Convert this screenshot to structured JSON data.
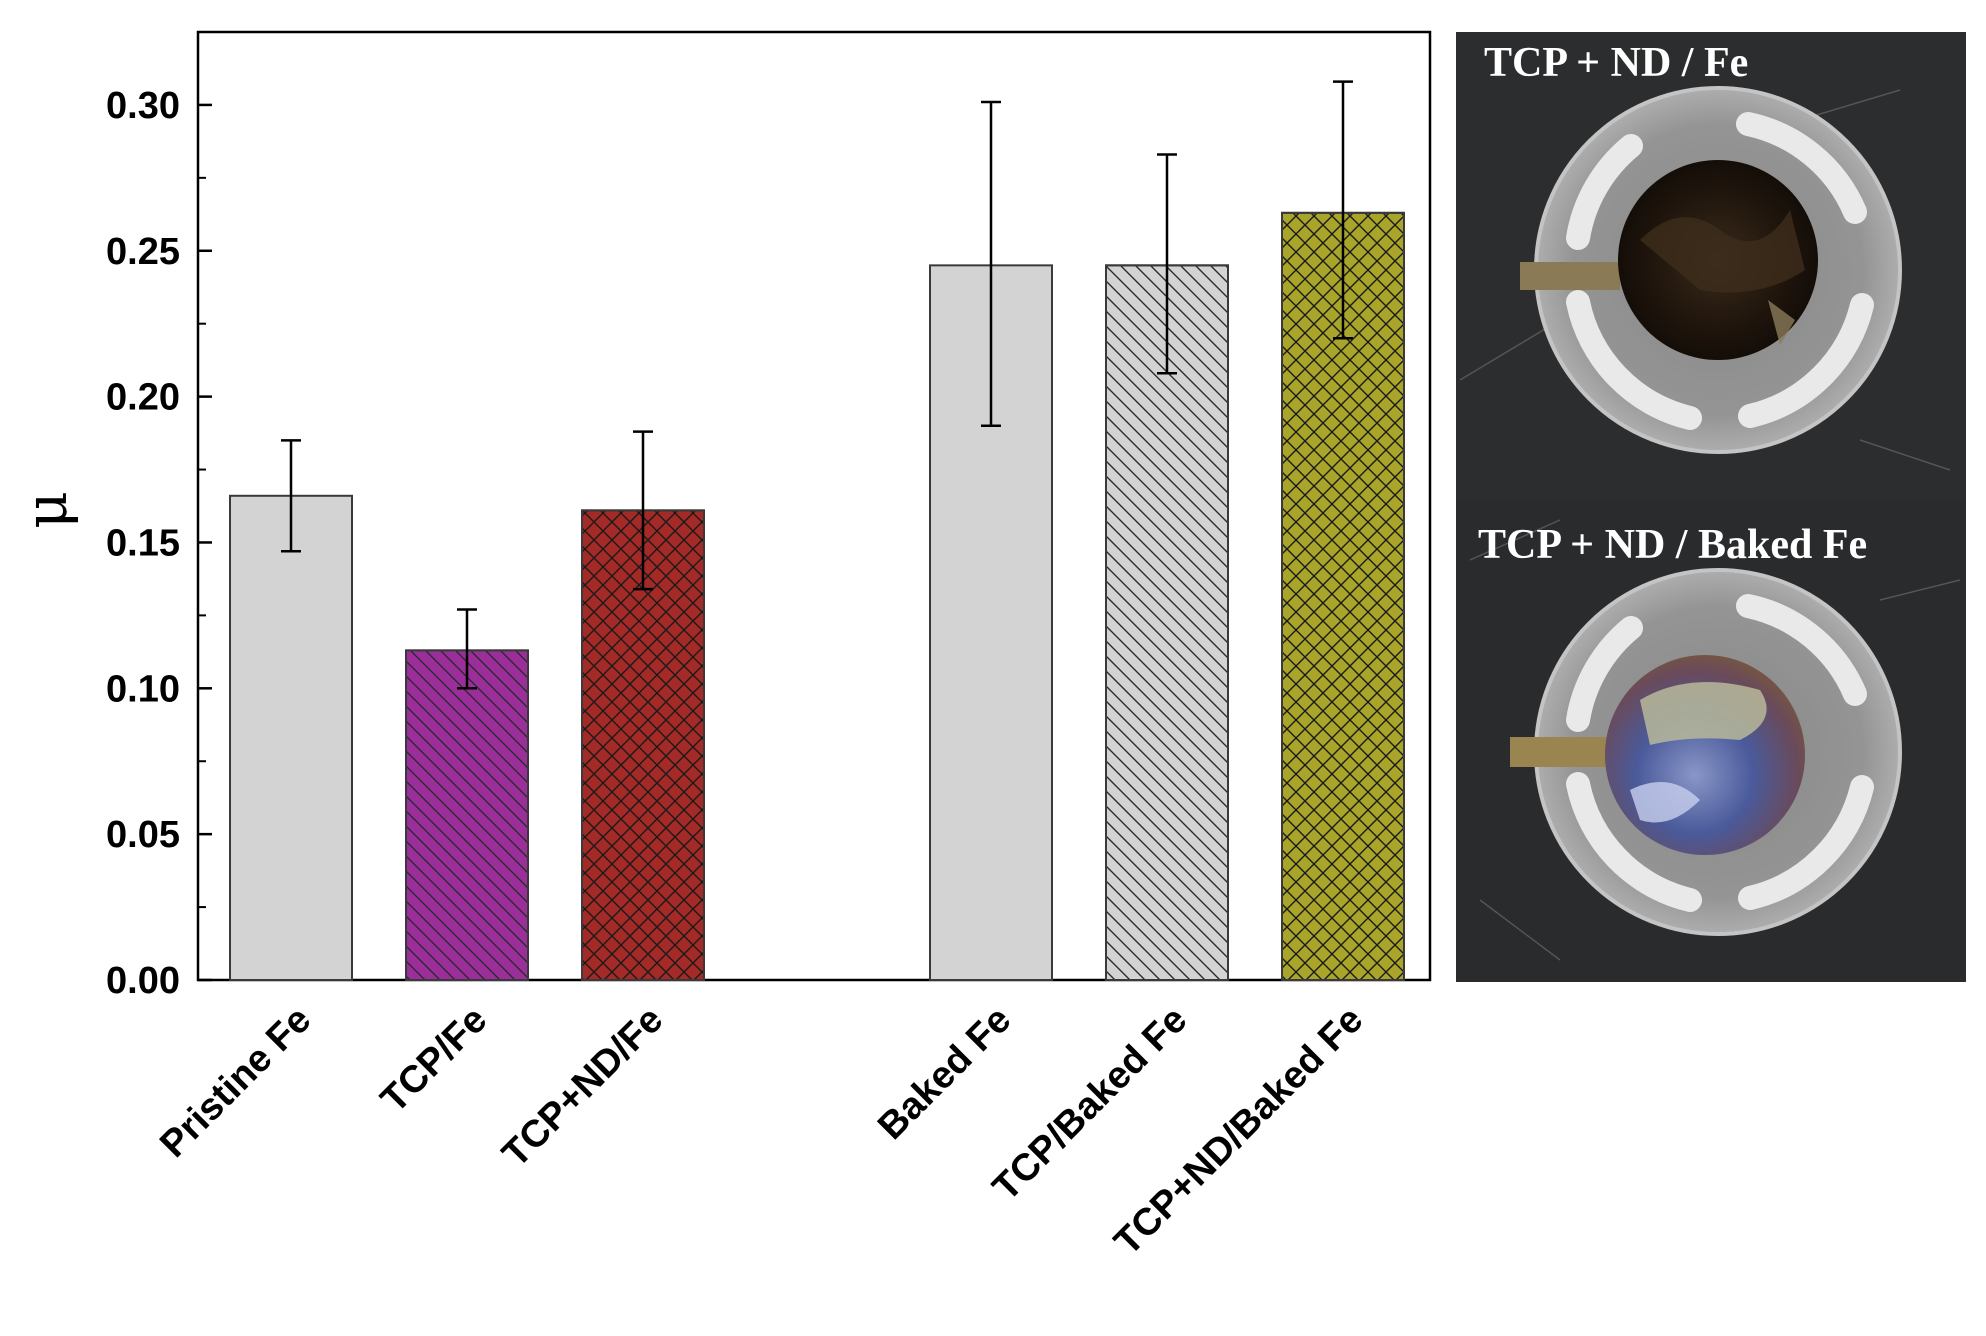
{
  "chart_data": {
    "type": "bar",
    "title": "",
    "xlabel": "",
    "ylabel": "μ",
    "ylim": [
      0,
      0.325
    ],
    "yticks": [
      "0.00",
      "0.05",
      "0.10",
      "0.15",
      "0.20",
      "0.25",
      "0.30"
    ],
    "categories": [
      "Pristine Fe",
      "TCP/Fe",
      "TCP+ND/Fe",
      "Baked Fe",
      "TCP/Baked Fe",
      "TCP+ND/Baked Fe"
    ],
    "values": [
      0.166,
      0.113,
      0.161,
      0.245,
      0.245,
      0.263
    ],
    "error_low": [
      0.147,
      0.1,
      0.134,
      0.19,
      0.208,
      0.22
    ],
    "error_high": [
      0.185,
      0.127,
      0.188,
      0.301,
      0.283,
      0.308
    ],
    "colors": [
      "#d3d3d3",
      "#9b2e9b",
      "#a32a26",
      "#d3d3d3",
      "#d3d3d3",
      "#a8a52a"
    ],
    "patterns": [
      "none",
      "diagonal",
      "crosshatch",
      "none",
      "diagonal",
      "crosshatch"
    ],
    "grid": false
  },
  "photos": {
    "top_title": "TCP + ND / Fe",
    "bottom_title": "TCP + ND / Baked Fe"
  }
}
